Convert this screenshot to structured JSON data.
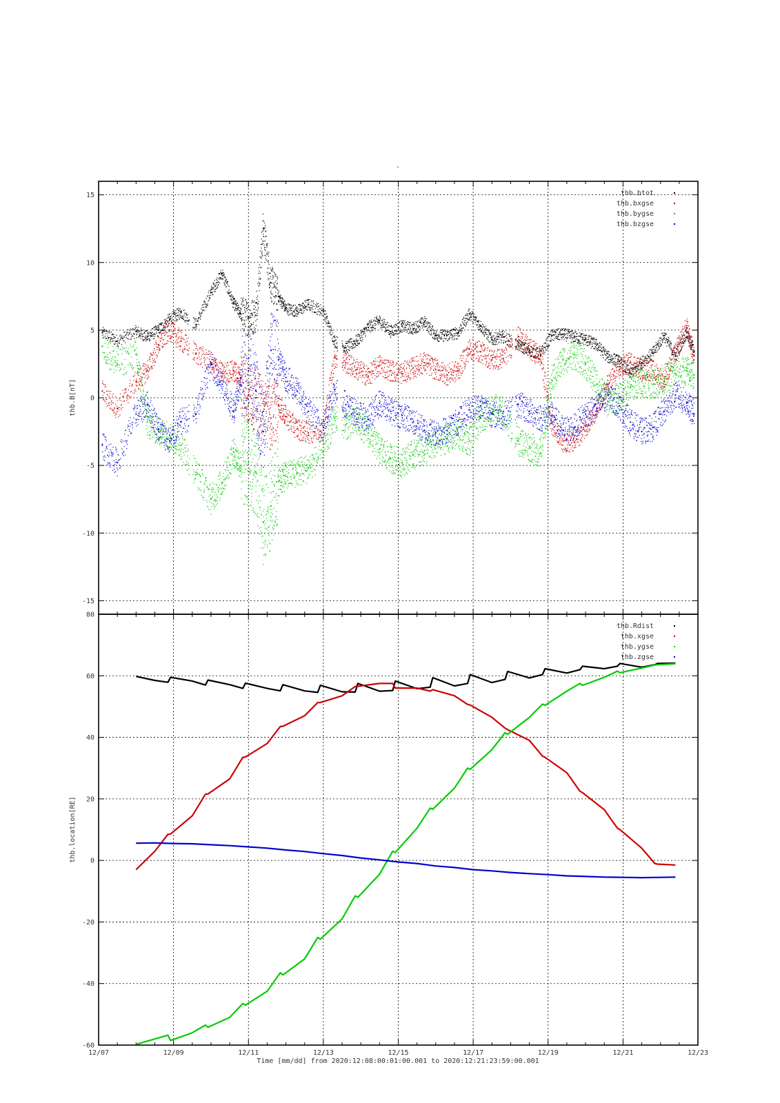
{
  "figure": {
    "top_title": "-",
    "xlabel": "Time [mm/dd]  from 2020:12:08:00:01:00.001  to  2020:12:21:23:59:00.001"
  },
  "chart_data": [
    {
      "type": "scatter",
      "ylabel": "thb.B[nT]",
      "xlim": [
        0,
        16
      ],
      "ylim": [
        -16,
        16
      ],
      "yticks": [
        -15,
        -10,
        -5,
        0,
        5,
        10,
        15
      ],
      "x_tick_labels": [
        "12/07",
        "12/09",
        "12/11",
        "12/13",
        "12/15",
        "12/17",
        "12/19",
        "12/21",
        "12/23"
      ],
      "grid": true,
      "legend_position": "top-right",
      "gaps": [
        [
          2.42,
          2.52
        ],
        [
          6.38,
          6.5
        ],
        [
          11.05,
          11.12
        ]
      ],
      "series": [
        {
          "name": "thb.btot",
          "color": "#000000",
          "x": [
            0.1,
            0.5,
            1.0,
            1.3,
            1.6,
            1.9,
            2.2,
            2.6,
            3.0,
            3.3,
            3.6,
            3.8,
            4.0,
            4.2,
            4.4,
            4.6,
            4.8,
            5.0,
            5.3,
            5.6,
            6.0,
            6.3,
            6.6,
            6.9,
            7.2,
            7.5,
            7.8,
            8.1,
            8.4,
            8.7,
            9.0,
            9.3,
            9.6,
            9.9,
            10.2,
            10.5,
            10.8,
            11.2,
            11.5,
            11.8,
            12.1,
            12.4,
            12.7,
            13.0,
            13.3,
            13.6,
            13.9,
            14.2,
            14.5,
            14.8,
            15.1,
            15.4,
            15.7,
            15.9
          ],
          "y": [
            4.8,
            4.2,
            4.9,
            4.5,
            5.0,
            5.8,
            6.3,
            5.4,
            7.8,
            9.2,
            7.0,
            6.2,
            5.9,
            6.1,
            12.5,
            8.5,
            7.5,
            6.6,
            6.4,
            6.9,
            6.4,
            4.2,
            3.7,
            4.2,
            5.2,
            5.7,
            4.9,
            5.3,
            5.1,
            5.6,
            4.6,
            4.6,
            4.8,
            6.2,
            5.3,
            4.3,
            4.5,
            3.9,
            3.5,
            3.2,
            4.6,
            4.7,
            4.5,
            4.3,
            3.9,
            3.0,
            2.7,
            1.8,
            2.6,
            3.3,
            4.6,
            3.1,
            4.8,
            3.4
          ]
        },
        {
          "name": "thb.bxgse",
          "color": "#cc0000",
          "x": [
            0.1,
            0.5,
            1.0,
            1.3,
            1.6,
            1.9,
            2.2,
            2.6,
            3.0,
            3.3,
            3.6,
            3.8,
            4.0,
            4.2,
            4.4,
            4.6,
            4.8,
            5.0,
            5.3,
            5.6,
            6.0,
            6.3,
            6.6,
            6.9,
            7.2,
            7.5,
            7.8,
            8.1,
            8.4,
            8.7,
            9.0,
            9.3,
            9.6,
            9.9,
            10.2,
            10.5,
            10.8,
            11.2,
            11.5,
            11.8,
            12.1,
            12.4,
            12.7,
            13.0,
            13.3,
            13.6,
            13.9,
            14.2,
            14.5,
            14.8,
            15.1,
            15.4,
            15.7,
            15.9
          ],
          "y": [
            0.5,
            -0.8,
            1.2,
            2.0,
            3.9,
            5.0,
            4.2,
            3.3,
            2.6,
            1.8,
            2.0,
            1.4,
            0.2,
            0.0,
            -1.0,
            -1.5,
            -0.5,
            -1.4,
            -2.3,
            -2.6,
            -2.4,
            3.0,
            2.6,
            2.1,
            1.6,
            2.4,
            2.0,
            1.8,
            2.2,
            2.6,
            2.1,
            1.7,
            2.0,
            3.6,
            3.4,
            2.8,
            2.9,
            4.5,
            3.6,
            3.1,
            -1.9,
            -3.2,
            -3.3,
            -2.1,
            -1.0,
            1.0,
            2.1,
            2.6,
            2.1,
            2.0,
            1.2,
            3.3,
            5.2,
            3.1
          ]
        },
        {
          "name": "thb.bygse",
          "color": "#00cc00",
          "x": [
            0.1,
            0.5,
            1.0,
            1.3,
            1.6,
            1.9,
            2.2,
            2.6,
            3.0,
            3.3,
            3.6,
            3.8,
            4.0,
            4.2,
            4.4,
            4.6,
            4.8,
            5.0,
            5.3,
            5.6,
            6.0,
            6.3,
            6.6,
            6.9,
            7.2,
            7.5,
            7.8,
            8.1,
            8.4,
            8.7,
            9.0,
            9.3,
            9.6,
            9.9,
            10.2,
            10.5,
            10.8,
            11.2,
            11.5,
            11.8,
            12.1,
            12.4,
            12.7,
            13.0,
            13.3,
            13.6,
            13.9,
            14.2,
            14.5,
            14.8,
            15.1,
            15.4,
            15.7,
            15.9
          ],
          "y": [
            3.8,
            2.5,
            3.2,
            -1.8,
            -2.5,
            -2.8,
            -3.5,
            -5.5,
            -7.5,
            -6.3,
            -4.0,
            -5.0,
            -4.8,
            -5.5,
            -9.2,
            -8.0,
            -6.2,
            -5.8,
            -5.5,
            -5.2,
            -4.0,
            -1.5,
            -2.0,
            -1.8,
            -2.6,
            -3.8,
            -4.5,
            -4.8,
            -4.2,
            -3.9,
            -3.4,
            -3.0,
            -2.8,
            -3.2,
            -1.5,
            -0.8,
            -1.0,
            -3.2,
            -3.6,
            -4.1,
            1.3,
            2.8,
            3.2,
            2.5,
            1.0,
            -0.3,
            0.0,
            0.8,
            1.2,
            1.0,
            1.4,
            1.8,
            2.0,
            1.7
          ]
        },
        {
          "name": "thb.bzgse",
          "color": "#0000cc",
          "x": [
            0.1,
            0.5,
            1.0,
            1.3,
            1.6,
            1.9,
            2.2,
            2.6,
            3.0,
            3.3,
            3.6,
            3.8,
            4.0,
            4.2,
            4.4,
            4.6,
            4.8,
            5.0,
            5.3,
            5.6,
            6.0,
            6.3,
            6.6,
            6.9,
            7.2,
            7.5,
            7.8,
            8.1,
            8.4,
            8.7,
            9.0,
            9.3,
            9.6,
            9.9,
            10.2,
            10.5,
            10.8,
            11.2,
            11.5,
            11.8,
            12.1,
            12.4,
            12.7,
            13.0,
            13.3,
            13.6,
            13.9,
            14.2,
            14.5,
            14.8,
            15.1,
            15.4,
            15.7,
            15.9
          ],
          "y": [
            -3.5,
            -4.8,
            -1.2,
            -0.5,
            -2.3,
            -3.2,
            -1.8,
            -1.2,
            2.5,
            1.0,
            -1.0,
            1.5,
            2.0,
            0.5,
            -2.5,
            3.5,
            2.8,
            1.5,
            0.5,
            -1.0,
            -2.2,
            0.6,
            -0.5,
            -1.2,
            -1.6,
            -0.4,
            -1.0,
            -1.3,
            -1.8,
            -2.4,
            -2.6,
            -2.4,
            -1.7,
            -0.9,
            -0.6,
            -1.2,
            -1.4,
            -0.5,
            -1.0,
            -1.5,
            -1.3,
            -2.4,
            -2.2,
            -1.2,
            -0.8,
            0.2,
            -0.6,
            -1.8,
            -2.5,
            -2.2,
            -1.0,
            0.2,
            -0.4,
            -1.2
          ]
        }
      ]
    },
    {
      "type": "line",
      "ylabel": "thb.location[RE]",
      "xlim": [
        0,
        16
      ],
      "ylim": [
        -60,
        80
      ],
      "yticks": [
        -60,
        -40,
        -20,
        0,
        20,
        40,
        60,
        80
      ],
      "x_tick_labels": [
        "12/07",
        "12/09",
        "12/11",
        "12/13",
        "12/15",
        "12/17",
        "12/19",
        "12/21",
        "12/23"
      ],
      "grid": true,
      "legend_position": "top-right",
      "series": [
        {
          "name": "thb.Rdist",
          "color": "#000000",
          "x": [
            1.0,
            1.5,
            1.85,
            1.92,
            2.5,
            2.85,
            2.92,
            3.5,
            3.85,
            3.92,
            4.5,
            4.85,
            4.92,
            5.5,
            5.85,
            5.92,
            6.5,
            6.85,
            6.92,
            7.5,
            7.85,
            7.92,
            8.5,
            8.85,
            8.92,
            9.5,
            9.85,
            9.92,
            10.5,
            10.85,
            10.92,
            11.5,
            11.85,
            11.92,
            12.5,
            12.85,
            12.92,
            13.5,
            13.85,
            13.92,
            14.5,
            14.85,
            14.92,
            15.4
          ],
          "y": [
            59.8,
            58.5,
            57.9,
            59.5,
            58.3,
            57.0,
            58.6,
            57.1,
            55.9,
            57.6,
            55.9,
            55.1,
            57.1,
            55.1,
            54.6,
            56.9,
            54.8,
            54.7,
            57.5,
            55.0,
            55.2,
            58.3,
            55.8,
            56.3,
            59.4,
            56.7,
            57.5,
            60.4,
            57.8,
            58.8,
            61.4,
            59.3,
            60.4,
            62.3,
            60.9,
            62.0,
            63.1,
            62.3,
            63.1,
            64.0,
            62.8,
            63.6,
            64.0,
            64.1
          ]
        },
        {
          "name": "thb.xgse",
          "color": "#cc0000",
          "x": [
            1.0,
            1.5,
            1.85,
            1.92,
            2.5,
            2.85,
            2.92,
            3.5,
            3.85,
            3.92,
            4.5,
            4.85,
            4.92,
            5.5,
            5.85,
            5.92,
            6.5,
            6.85,
            6.92,
            7.5,
            7.85,
            7.92,
            8.5,
            8.85,
            8.92,
            9.5,
            9.85,
            9.92,
            10.5,
            10.85,
            10.92,
            11.5,
            11.85,
            11.92,
            12.5,
            12.85,
            12.92,
            13.5,
            13.85,
            13.92,
            14.5,
            14.85,
            14.92,
            15.4
          ],
          "y": [
            -3.0,
            3.0,
            8.5,
            8.6,
            14.5,
            21.5,
            21.6,
            26.5,
            33.5,
            33.6,
            38.0,
            43.5,
            43.6,
            47.0,
            51.3,
            51.3,
            53.5,
            56.5,
            56.6,
            57.5,
            57.5,
            56.0,
            56.0,
            55.0,
            55.5,
            53.5,
            50.7,
            50.5,
            46.5,
            43.0,
            42.5,
            39.0,
            33.9,
            33.5,
            28.5,
            22.5,
            22.0,
            16.5,
            10.5,
            10.0,
            4.0,
            -1.0,
            -1.2,
            -1.5
          ]
        },
        {
          "name": "thb.ygse",
          "color": "#00cc00",
          "x": [
            1.0,
            1.5,
            1.85,
            1.92,
            2.5,
            2.85,
            2.92,
            3.5,
            3.85,
            3.92,
            4.5,
            4.85,
            4.92,
            5.5,
            5.85,
            5.92,
            6.5,
            6.85,
            6.92,
            7.5,
            7.85,
            7.92,
            8.5,
            8.85,
            8.92,
            9.5,
            9.85,
            9.92,
            10.5,
            10.85,
            10.92,
            11.5,
            11.85,
            11.92,
            12.5,
            12.85,
            12.92,
            13.5,
            13.85,
            13.92,
            14.5,
            14.85,
            14.92,
            15.4
          ],
          "y": [
            -59.8,
            -58.0,
            -56.8,
            -58.5,
            -56.0,
            -53.5,
            -54.2,
            -51.0,
            -46.5,
            -47.0,
            -42.5,
            -36.5,
            -37.2,
            -32.0,
            -25.0,
            -25.6,
            -19.0,
            -11.5,
            -12.0,
            -4.5,
            3.0,
            2.6,
            10.5,
            17.0,
            16.6,
            23.5,
            30.0,
            29.6,
            36.0,
            41.5,
            41.0,
            46.5,
            50.8,
            50.4,
            55.0,
            57.5,
            56.9,
            59.5,
            61.5,
            61.0,
            62.5,
            63.5,
            63.6,
            63.9
          ]
        },
        {
          "name": "thb.zgse",
          "color": "#0000cc",
          "x": [
            1.0,
            1.5,
            2.0,
            2.5,
            3.0,
            3.5,
            4.0,
            4.5,
            5.0,
            5.5,
            6.0,
            6.5,
            7.0,
            7.5,
            8.0,
            8.5,
            9.0,
            9.5,
            10.0,
            10.5,
            11.0,
            11.5,
            12.0,
            12.5,
            13.0,
            13.5,
            14.0,
            14.5,
            15.0,
            15.4
          ],
          "y": [
            5.6,
            5.7,
            5.5,
            5.4,
            5.1,
            4.8,
            4.4,
            4.0,
            3.4,
            2.9,
            2.2,
            1.6,
            0.8,
            0.2,
            -0.5,
            -1.0,
            -1.8,
            -2.3,
            -3.0,
            -3.4,
            -3.9,
            -4.3,
            -4.6,
            -5.0,
            -5.2,
            -5.4,
            -5.5,
            -5.6,
            -5.5,
            -5.4
          ]
        }
      ]
    }
  ]
}
